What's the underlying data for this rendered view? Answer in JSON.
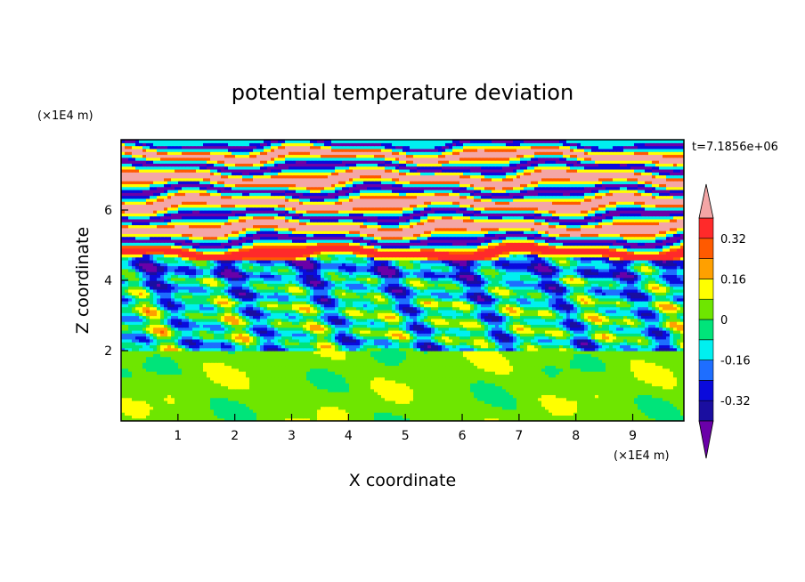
{
  "chart_data": {
    "type": "heatmap",
    "title": "potential temperature deviation",
    "xlabel": "X coordinate",
    "ylabel": "Z coordinate",
    "x_unit": "(×1E4 m)",
    "y_unit": "(×1E4 m)",
    "time_label": "t=7.1856e+06",
    "x_range": [
      0,
      9.9
    ],
    "y_range": [
      0,
      8
    ],
    "x_ticks": [
      1,
      2,
      3,
      4,
      5,
      6,
      7,
      8,
      9
    ],
    "y_ticks": [
      2,
      4,
      6
    ],
    "colorbar": {
      "labels": [
        "0.32",
        "0.16",
        "0",
        "-0.16",
        "-0.32"
      ],
      "label_levels": [
        0.32,
        0.16,
        0,
        -0.16,
        -0.32
      ],
      "levels": [
        -0.4,
        -0.32,
        -0.24,
        -0.16,
        -0.08,
        0,
        0.08,
        0.16,
        0.24,
        0.32,
        0.4
      ],
      "colors": [
        "#6a00a8",
        "#1a0ea0",
        "#0a0adc",
        "#1e6eff",
        "#00f0f0",
        "#00e47a",
        "#6ee600",
        "#ffff00",
        "#ffa000",
        "#ff5a00",
        "#ff2a2a",
        "#f4a6a6"
      ],
      "extend": "both"
    },
    "bands": [
      {
        "z0": 0,
        "z1": 2.0,
        "value": 0.04,
        "pattern": "blobs"
      },
      {
        "z0": 2.0,
        "z1": 2.3,
        "value": -0.1,
        "pattern": "mixed"
      },
      {
        "z0": 2.3,
        "z1": 3.4,
        "value": -0.06,
        "pattern": "mixed"
      },
      {
        "z0": 3.4,
        "z1": 4.1,
        "value": -0.12,
        "pattern": "mixed"
      },
      {
        "z0": 4.1,
        "z1": 4.6,
        "value": -0.2,
        "pattern": "mixed"
      },
      {
        "z0": 4.6,
        "z1": 5.0,
        "value": 0.36,
        "pattern": "wavy"
      },
      {
        "z0": 5.0,
        "z1": 5.3,
        "value": -0.44,
        "pattern": "wavy"
      },
      {
        "z0": 5.3,
        "z1": 5.7,
        "value": 0.44,
        "pattern": "wavy"
      },
      {
        "z0": 5.7,
        "z1": 6.0,
        "value": -0.44,
        "pattern": "wavy"
      },
      {
        "z0": 6.0,
        "z1": 6.4,
        "value": 0.44,
        "pattern": "wavy"
      },
      {
        "z0": 6.4,
        "z1": 6.7,
        "value": -0.44,
        "pattern": "wavy"
      },
      {
        "z0": 6.7,
        "z1": 7.1,
        "value": 0.44,
        "pattern": "wavy"
      },
      {
        "z0": 7.1,
        "z1": 7.4,
        "value": -0.44,
        "pattern": "wavy"
      },
      {
        "z0": 7.4,
        "z1": 7.75,
        "value": 0.44,
        "pattern": "wavy"
      },
      {
        "z0": 7.75,
        "z1": 8.0,
        "value": -0.44,
        "pattern": "wavy"
      }
    ]
  }
}
